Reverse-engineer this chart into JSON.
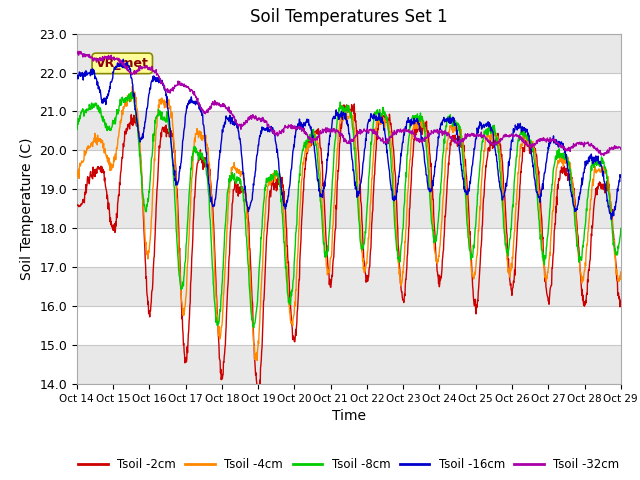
{
  "title": "Soil Temperatures Set 1",
  "xlabel": "Time",
  "ylabel": "Soil Temperature (C)",
  "ylim": [
    14.0,
    23.0
  ],
  "yticks": [
    14.0,
    15.0,
    16.0,
    17.0,
    18.0,
    19.0,
    20.0,
    21.0,
    22.0,
    23.0
  ],
  "xtick_labels": [
    "Oct 14",
    "Oct 15",
    "Oct 16",
    "Oct 17",
    "Oct 18",
    "Oct 19",
    "Oct 20",
    "Oct 21",
    "Oct 22",
    "Oct 23",
    "Oct 24",
    "Oct 25",
    "Oct 26",
    "Oct 27",
    "Oct 28",
    "Oct 29"
  ],
  "series_colors": [
    "#cc0000",
    "#ff8800",
    "#00cc00",
    "#0000cc",
    "#aa00aa"
  ],
  "series_labels": [
    "Tsoil -2cm",
    "Tsoil -4cm",
    "Tsoil -8cm",
    "Tsoil -16cm",
    "Tsoil -32cm"
  ],
  "annotation_text": "VR_met",
  "bg_color": "#ffffff",
  "plot_bg_color": "#ffffff",
  "grid_color": "#e0e0e0",
  "n_points": 1440
}
